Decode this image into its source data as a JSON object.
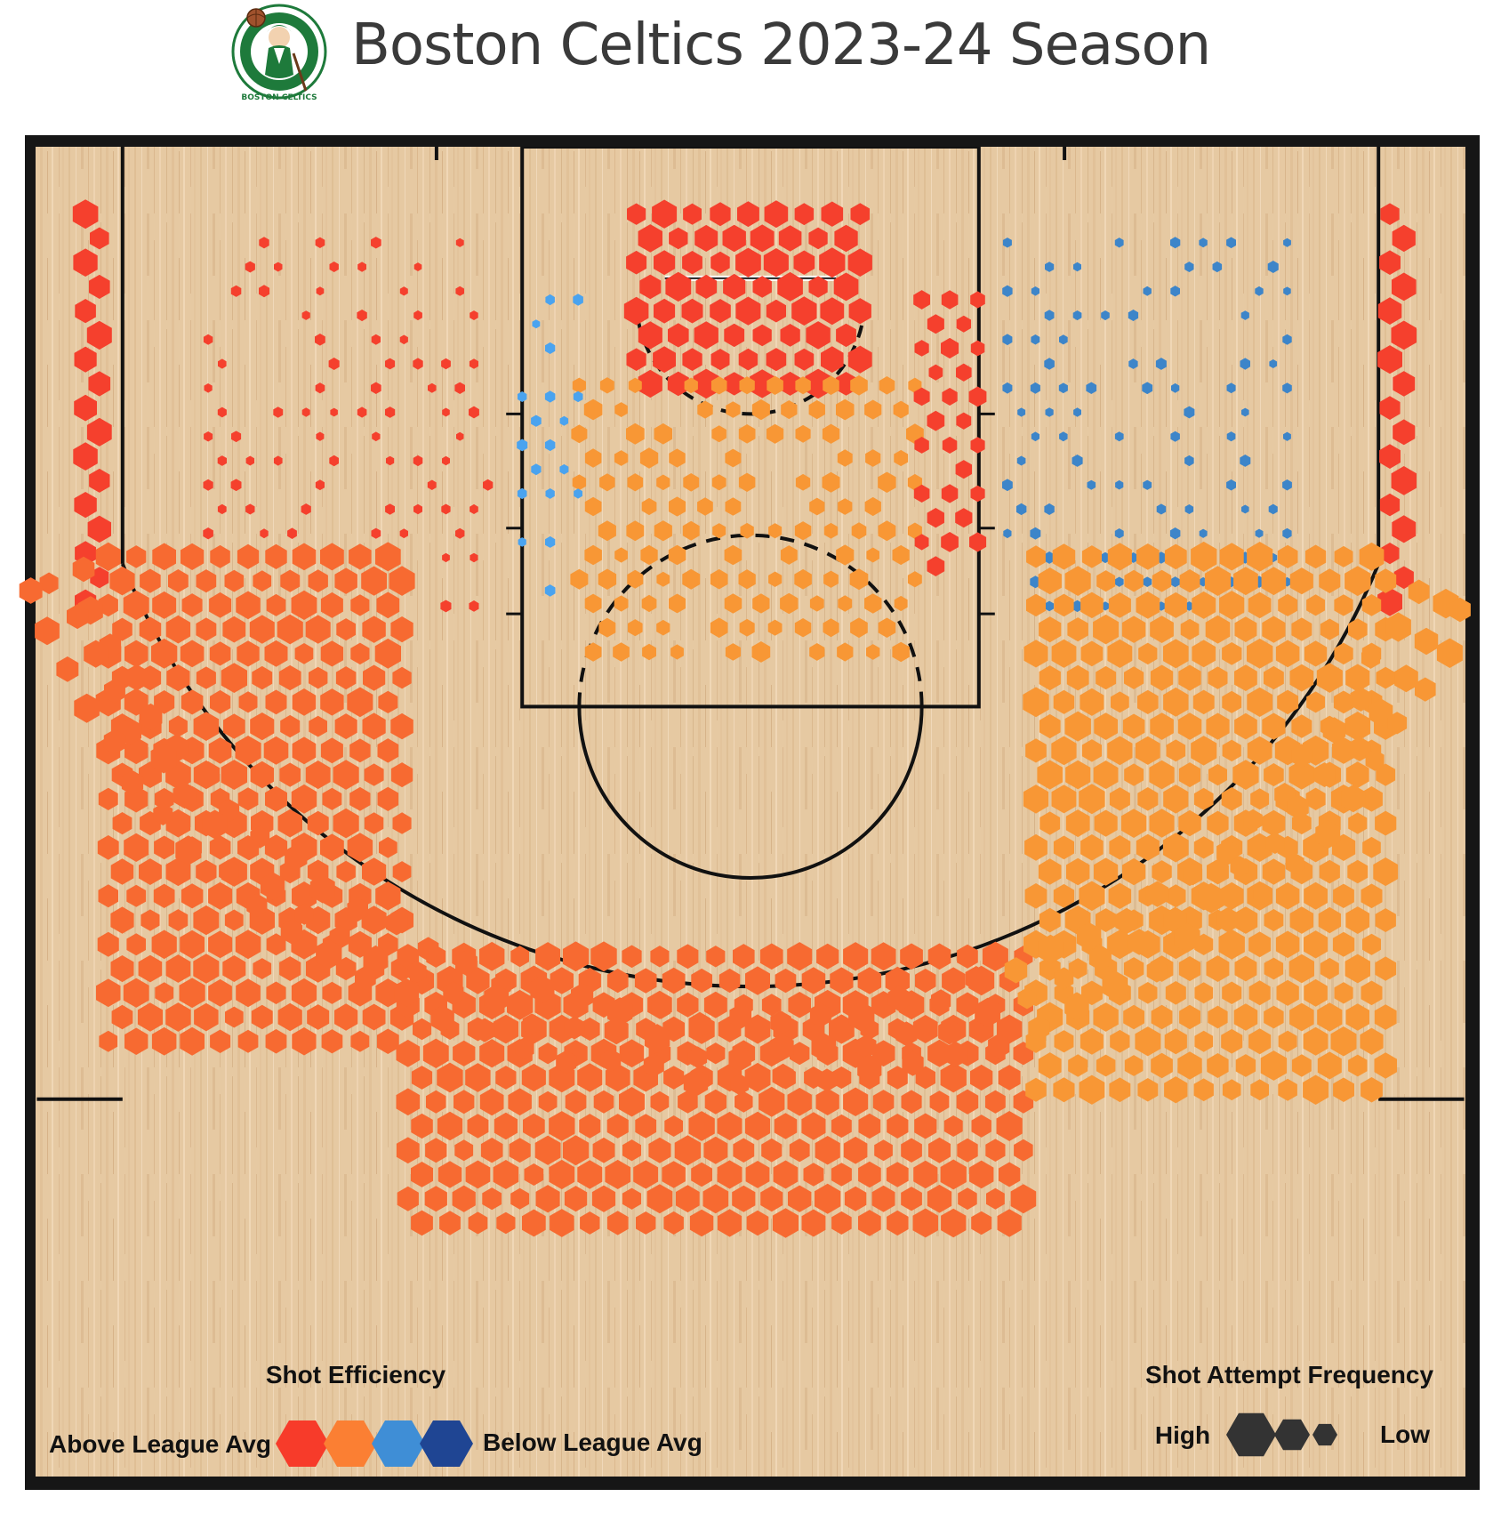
{
  "title": "Boston Celtics 2023-24 Season",
  "logo": {
    "ring_text": "BOSTON CELTICS"
  },
  "legend": {
    "efficiency_title": "Shot Efficiency",
    "above_label": "Above League Avg",
    "below_label": "Below League Avg",
    "efficiency_colors": [
      "#f73b2a",
      "#fb7f33",
      "#3f8ed6",
      "#1f4593"
    ],
    "frequency_title": "Shot Attempt Frequency",
    "high_label": "High",
    "low_label": "Low"
  },
  "colors": {
    "far_above": "#f5402d",
    "above": "#f76a31",
    "slightly_above": "#f89735",
    "below": "#4aa3ef",
    "far_below": "#3d85c9",
    "court_line": "#111111",
    "wood": "#e8cca6"
  },
  "chart_data": {
    "type": "hexbin",
    "title": "Boston Celtics 2023-24 Season",
    "xlabel": "",
    "ylabel": "",
    "x_range": [
      -250,
      250
    ],
    "y_range": [
      -47.5,
      422.5
    ],
    "units": "tenths of feet from basket",
    "color_scale": [
      "far_above",
      "above",
      "slightly_above",
      "below",
      "far_below"
    ],
    "size_scale": "shot attempt frequency (high to low)",
    "regions": [
      {
        "name": "left corner three",
        "x": [
          -233,
          -224
        ],
        "y": [
          -30,
          110
        ],
        "efficiency": "far_above",
        "frequency": "high"
      },
      {
        "name": "right corner three",
        "x": [
          224,
          233
        ],
        "y": [
          -30,
          110
        ],
        "efficiency": "far_above",
        "frequency": "high"
      },
      {
        "name": "restricted area",
        "x": [
          -40,
          40
        ],
        "y": [
          -30,
          30
        ],
        "efficiency": "far_above",
        "frequency": "high"
      },
      {
        "name": "paint (non-RA)",
        "x": [
          -60,
          60
        ],
        "y": [
          30,
          130
        ],
        "efficiency": "slightly_above",
        "frequency": "medium"
      },
      {
        "name": "left block / baseline",
        "x": [
          -80,
          -60
        ],
        "y": [
          0,
          110
        ],
        "efficiency": "below",
        "frequency": "low"
      },
      {
        "name": "right block",
        "x": [
          60,
          80
        ],
        "y": [
          0,
          100
        ],
        "efficiency": "far_above",
        "frequency": "medium"
      },
      {
        "name": "left baseline midrange",
        "x": [
          -190,
          -90
        ],
        "y": [
          -20,
          110
        ],
        "efficiency": "far_above",
        "frequency": "low"
      },
      {
        "name": "right baseline midrange",
        "x": [
          90,
          190
        ],
        "y": [
          -20,
          110
        ],
        "efficiency": "far_below",
        "frequency": "low"
      },
      {
        "name": "left wing three",
        "x": [
          -225,
          -120
        ],
        "y": [
          90,
          260
        ],
        "efficiency": "above",
        "frequency": "high"
      },
      {
        "name": "top of key three",
        "x": [
          -120,
          100
        ],
        "y": [
          230,
          330
        ],
        "efficiency": "above",
        "frequency": "high"
      },
      {
        "name": "right wing three",
        "x": [
          100,
          225
        ],
        "y": [
          90,
          280
        ],
        "efficiency": "slightly_above",
        "frequency": "high"
      }
    ]
  }
}
